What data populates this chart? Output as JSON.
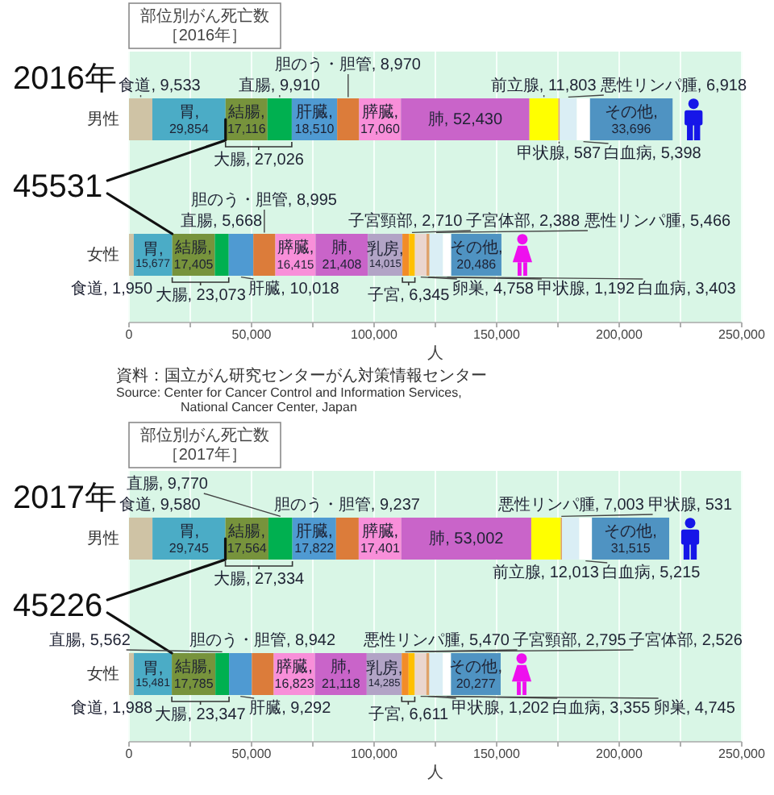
{
  "chart_data": [
    {
      "type": "bar",
      "orientation": "horizontal",
      "stacked": true,
      "title": "部位別がん死亡数",
      "subtitle": "［2016年］",
      "categories": [
        "男性",
        "女性"
      ],
      "xlabel": "人",
      "xlim": [
        0,
        250000
      ],
      "xticks": [
        0,
        {
          "value": 25000,
          "label": null
        },
        {
          "value": 50000,
          "label": "50,000"
        },
        {
          "value": 75000,
          "label": null
        },
        {
          "value": 100000,
          "label": "100,000"
        },
        {
          "value": 125000,
          "label": null
        },
        {
          "value": 150000,
          "label": "150,000"
        },
        {
          "value": 175000,
          "label": null
        },
        {
          "value": 200000,
          "label": "200,000"
        },
        {
          "value": 225000,
          "label": null
        },
        {
          "value": 250000,
          "label": "250,000"
        }
      ],
      "grid": "x",
      "series": [
        {
          "color": "#cfc3a5",
          "values": [
            9533,
            1950
          ],
          "value_labels": [
            "食道, 9,533",
            "食道, 1,950"
          ]
        },
        {
          "color": "#4bacc6",
          "values": [
            29854,
            15677
          ],
          "value_labels": [
            "胃, 29,854",
            "胃, 15,677"
          ]
        },
        {
          "color": "#77933c",
          "values": [
            17116,
            17405
          ],
          "value_labels": [
            "結腸, 17,116",
            "結腸, 17,405"
          ]
        },
        {
          "color": "#00b050",
          "values": [
            9910,
            5668
          ],
          "value_labels": [
            "直腸, 9,910",
            "直腸, 5,668"
          ]
        },
        {
          "color": "#4f9ad2",
          "values": [
            18510,
            10018
          ],
          "value_labels": [
            "肝臓, 18,510",
            "肝臓, 10,018"
          ]
        },
        {
          "color": "#dc7c3a",
          "values": [
            8970,
            8995
          ],
          "value_labels": [
            "胆のう・胆管, 8,970",
            "胆のう・胆管, 8,995"
          ]
        },
        {
          "color": "#f88fd9",
          "values": [
            17060,
            16415
          ],
          "value_labels": [
            "膵臓, 17,060",
            "膵臓, 16,415"
          ]
        },
        {
          "color": "#c964c9",
          "values": [
            52430,
            21408
          ],
          "value_labels": [
            "肺, 52,430",
            "肺, 21,408"
          ]
        },
        {
          "color": "#ffff00",
          "values": [
            11803,
            null
          ],
          "value_labels": [
            "前立腺, 11,803",
            null
          ]
        },
        {
          "color": "#b2a4c6",
          "values": [
            null,
            14015
          ],
          "value_labels": [
            null,
            "乳房, 14,015"
          ]
        },
        {
          "color": "#f28c28",
          "values": [
            null,
            2710
          ],
          "value_labels": [
            null,
            "子宮頸部, 2,710"
          ]
        },
        {
          "color": "#ffc000",
          "values": [
            null,
            2388
          ],
          "value_labels": [
            null,
            "子宮体部, 2,388"
          ]
        },
        {
          "color": "#ead6cf",
          "values": [
            null,
            4758
          ],
          "value_labels": [
            null,
            "卵巣, 4,758"
          ]
        },
        {
          "color": "#dfa26a",
          "values": [
            587,
            1192
          ],
          "value_labels": [
            "甲状腺, 587",
            "甲状腺, 1,192"
          ]
        },
        {
          "color": "#daeef5",
          "values": [
            6918,
            5466
          ],
          "value_labels": [
            "悪性リンパ腫, 6,918",
            "悪性リンパ腫, 5,466"
          ]
        },
        {
          "color": "#ffffff",
          "values": [
            5398,
            3403
          ],
          "value_labels": [
            "白血病, 5,398",
            "白血病, 3,403"
          ]
        },
        {
          "color": "#4f93c2",
          "values": [
            33696,
            20486
          ],
          "value_labels": [
            "その他, 33,696",
            "その他, 20,486"
          ]
        }
      ],
      "annotations": [
        "2016年",
        {
          "text": "45531",
          "x": 39387,
          "y": "男性"
        },
        "大腸, 27,026",
        "大腸, 23,073",
        "子宮, 6,345",
        "資料：国立がん研究センターがん対策情報センター",
        "Source: Center for Cancer Control and Information Services,",
        "National Cancer Center, Japan"
      ]
    },
    {
      "type": "bar",
      "orientation": "horizontal",
      "stacked": true,
      "title": "部位別がん死亡数",
      "subtitle": "［2017年］",
      "categories": [
        "男性",
        "女性"
      ],
      "xlabel": "人",
      "xlim": [
        0,
        250000
      ],
      "xticks": [
        0,
        {
          "value": 25000,
          "label": null
        },
        {
          "value": 50000,
          "label": "50,000"
        },
        {
          "value": 75000,
          "label": null
        },
        {
          "value": 100000,
          "label": "100,000"
        },
        {
          "value": 125000,
          "label": null
        },
        {
          "value": 150000,
          "label": "150,000"
        },
        {
          "value": 175000,
          "label": null
        },
        {
          "value": 200000,
          "label": "200,000"
        },
        {
          "value": 225000,
          "label": null
        },
        {
          "value": 250000,
          "label": "250,000"
        }
      ],
      "grid": "x",
      "series": [
        {
          "color": "#cfc3a5",
          "values": [
            9580,
            1988
          ],
          "value_labels": [
            "食道, 9,580",
            "食道, 1,988"
          ]
        },
        {
          "color": "#4bacc6",
          "values": [
            29745,
            15481
          ],
          "value_labels": [
            "胃, 29,745",
            "胃, 15,481"
          ]
        },
        {
          "color": "#77933c",
          "values": [
            17564,
            17785
          ],
          "value_labels": [
            "結腸, 17,564",
            "結腸, 17,785"
          ]
        },
        {
          "color": "#00b050",
          "values": [
            9770,
            5562
          ],
          "value_labels": [
            "直腸, 9,770",
            "直腸, 5,562"
          ]
        },
        {
          "color": "#4f9ad2",
          "values": [
            17822,
            9292
          ],
          "value_labels": [
            "肝臓, 17,822",
            "肝臓, 9,292"
          ]
        },
        {
          "color": "#dc7c3a",
          "values": [
            9237,
            8942
          ],
          "value_labels": [
            "胆のう・胆管, 9,237",
            "胆のう・胆管, 8,942"
          ]
        },
        {
          "color": "#f88fd9",
          "values": [
            17401,
            16823
          ],
          "value_labels": [
            "膵臓, 17,401",
            "膵臓, 16,823"
          ]
        },
        {
          "color": "#c964c9",
          "values": [
            53002,
            21118
          ],
          "value_labels": [
            "肺, 53,002",
            "肺, 21,118"
          ]
        },
        {
          "color": "#ffff00",
          "values": [
            12013,
            null
          ],
          "value_labels": [
            "前立腺, 12,013",
            null
          ]
        },
        {
          "color": "#b2a4c6",
          "values": [
            null,
            14285
          ],
          "value_labels": [
            null,
            "乳房, 14,285"
          ]
        },
        {
          "color": "#f28c28",
          "values": [
            null,
            2795
          ],
          "value_labels": [
            null,
            "子宮頸部, 2,795"
          ]
        },
        {
          "color": "#ffc000",
          "values": [
            null,
            2526
          ],
          "value_labels": [
            null,
            "子宮体部, 2,526"
          ]
        },
        {
          "color": "#ead6cf",
          "values": [
            null,
            4745
          ],
          "value_labels": [
            null,
            "卵巣, 4,745"
          ]
        },
        {
          "color": "#dfa26a",
          "values": [
            531,
            1202
          ],
          "value_labels": [
            "甲状腺, 531",
            "甲状腺, 1,202"
          ]
        },
        {
          "color": "#daeef5",
          "values": [
            7003,
            5470
          ],
          "value_labels": [
            "悪性リンパ腫, 7,003",
            "悪性リンパ腫, 5,470"
          ]
        },
        {
          "color": "#ffffff",
          "values": [
            5215,
            3355
          ],
          "value_labels": [
            "白血病, 5,215",
            "白血病, 3,355"
          ]
        },
        {
          "color": "#4f93c2",
          "values": [
            31515,
            20277
          ],
          "value_labels": [
            "その他, 31,515",
            "その他, 20,277"
          ]
        }
      ],
      "annotations": [
        "2017年",
        {
          "text": "45226",
          "x": 39325,
          "y": "男性"
        },
        "大腸, 27,334",
        "大腸, 23,347",
        "子宮, 6,611"
      ]
    }
  ]
}
